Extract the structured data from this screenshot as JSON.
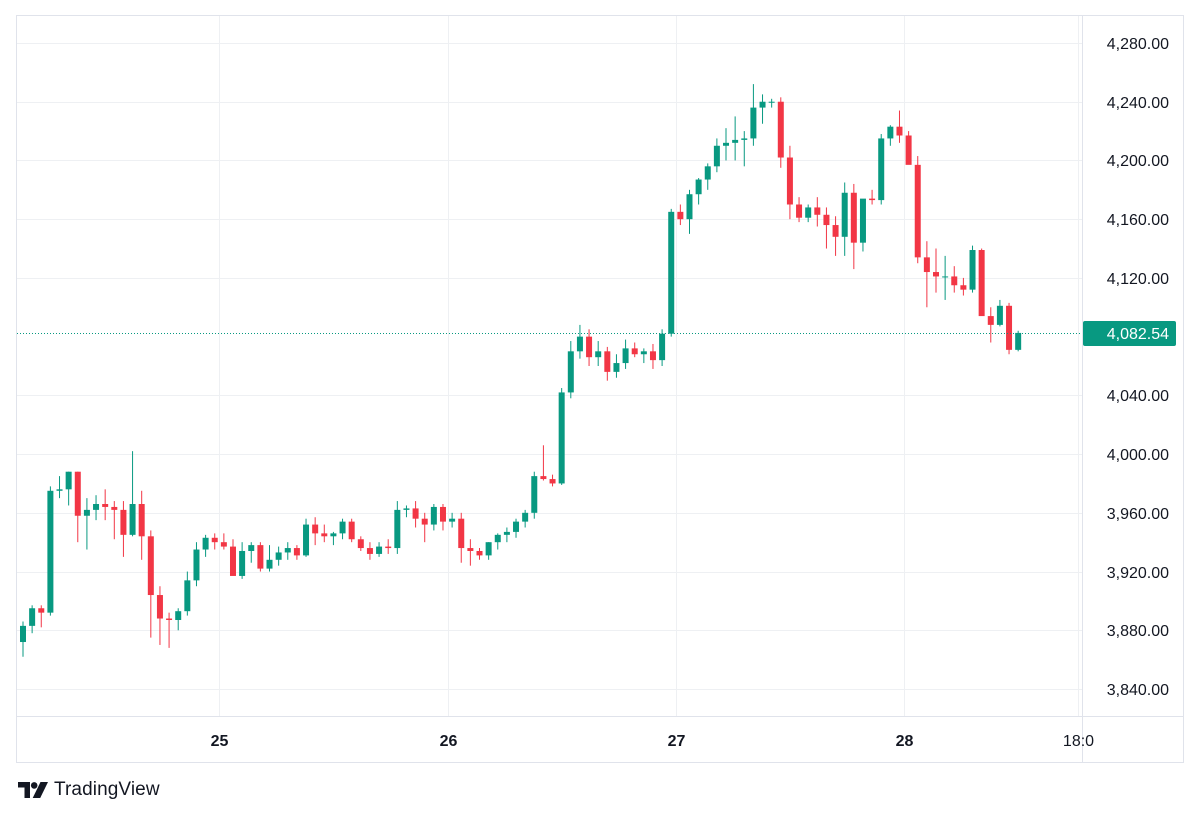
{
  "brand": {
    "name": "TradingView",
    "logo_icon": "tradingview-logo-icon"
  },
  "colors": {
    "up": "#089981",
    "down": "#f23645",
    "grid": "#eef0f3",
    "axis_border": "#e0e3eb",
    "text": "#131722",
    "price_line": "#089981"
  },
  "last_price": {
    "value": 4082.54,
    "label": "4,082.54"
  },
  "chart_data": {
    "type": "candlestick",
    "title": "",
    "xlabel": "",
    "ylabel": "",
    "ylim": [
      3820,
      4300
    ],
    "y_ticks": [
      {
        "value": 4280,
        "label": "4,280.00"
      },
      {
        "value": 4240,
        "label": "4,240.00"
      },
      {
        "value": 4200,
        "label": "4,200.00"
      },
      {
        "value": 4160,
        "label": "4,160.00"
      },
      {
        "value": 4120,
        "label": "4,120.00"
      },
      {
        "value": 4040,
        "label": "4,040.00"
      },
      {
        "value": 4000,
        "label": "4,000.00"
      },
      {
        "value": 3960,
        "label": "3,960.00"
      },
      {
        "value": 3920,
        "label": "3,920.00"
      },
      {
        "value": 3880,
        "label": "3,880.00"
      },
      {
        "value": 3840,
        "label": "3,840.00"
      }
    ],
    "x_ticks": [
      {
        "bar": 21.5,
        "label": "25",
        "bold": true
      },
      {
        "bar": 46.5,
        "label": "26",
        "bold": true
      },
      {
        "bar": 71.5,
        "label": "27",
        "bold": true
      },
      {
        "bar": 96.5,
        "label": "28",
        "bold": true
      },
      {
        "bar": 115.5,
        "label": "18:0",
        "bold": false
      }
    ],
    "grid": true,
    "candles": [
      [
        3872,
        3886,
        3862,
        3883
      ],
      [
        3883,
        3897,
        3878,
        3895
      ],
      [
        3895,
        3897,
        3882,
        3892
      ],
      [
        3892,
        3978,
        3890,
        3975
      ],
      [
        3975,
        3985,
        3970,
        3976
      ],
      [
        3976,
        3988,
        3965,
        3988
      ],
      [
        3988,
        3988,
        3940,
        3958
      ],
      [
        3958,
        3970,
        3935,
        3962
      ],
      [
        3962,
        3972,
        3955,
        3966
      ],
      [
        3966,
        3976,
        3955,
        3964
      ],
      [
        3964,
        3968,
        3942,
        3962
      ],
      [
        3962,
        3968,
        3930,
        3945
      ],
      [
        3945,
        4002,
        3944,
        3966
      ],
      [
        3966,
        3975,
        3928,
        3944
      ],
      [
        3944,
        3948,
        3875,
        3904
      ],
      [
        3904,
        3910,
        3870,
        3888
      ],
      [
        3888,
        3892,
        3868,
        3887
      ],
      [
        3887,
        3895,
        3880,
        3893
      ],
      [
        3893,
        3920,
        3890,
        3914
      ],
      [
        3914,
        3940,
        3910,
        3935
      ],
      [
        3935,
        3945,
        3930,
        3943
      ],
      [
        3943,
        3946,
        3935,
        3940
      ],
      [
        3940,
        3946,
        3935,
        3937
      ],
      [
        3937,
        3942,
        3918,
        3917
      ],
      [
        3917,
        3940,
        3915,
        3934
      ],
      [
        3934,
        3940,
        3926,
        3938
      ],
      [
        3938,
        3940,
        3920,
        3922
      ],
      [
        3922,
        3938,
        3920,
        3928
      ],
      [
        3928,
        3937,
        3924,
        3933
      ],
      [
        3933,
        3940,
        3928,
        3936
      ],
      [
        3936,
        3938,
        3928,
        3931
      ],
      [
        3931,
        3956,
        3930,
        3952
      ],
      [
        3952,
        3957,
        3938,
        3946
      ],
      [
        3946,
        3952,
        3940,
        3944
      ],
      [
        3944,
        3947,
        3938,
        3946
      ],
      [
        3946,
        3956,
        3942,
        3954
      ],
      [
        3954,
        3956,
        3940,
        3942
      ],
      [
        3942,
        3944,
        3934,
        3936
      ],
      [
        3936,
        3940,
        3928,
        3932
      ],
      [
        3932,
        3940,
        3930,
        3937
      ],
      [
        3937,
        3942,
        3932,
        3936
      ],
      [
        3936,
        3968,
        3932,
        3962
      ],
      [
        3962,
        3965,
        3957,
        3963
      ],
      [
        3963,
        3968,
        3950,
        3956
      ],
      [
        3956,
        3960,
        3940,
        3952
      ],
      [
        3952,
        3966,
        3948,
        3964
      ],
      [
        3964,
        3966,
        3948,
        3954
      ],
      [
        3954,
        3960,
        3950,
        3956
      ],
      [
        3956,
        3960,
        3926,
        3936
      ],
      [
        3936,
        3942,
        3924,
        3934
      ],
      [
        3934,
        3936,
        3928,
        3931
      ],
      [
        3931,
        3940,
        3928,
        3940
      ],
      [
        3940,
        3946,
        3935,
        3945
      ],
      [
        3945,
        3950,
        3940,
        3947
      ],
      [
        3947,
        3956,
        3943,
        3954
      ],
      [
        3954,
        3962,
        3950,
        3960
      ],
      [
        3960,
        3988,
        3956,
        3985
      ],
      [
        3985,
        4006,
        3982,
        3983
      ],
      [
        3983,
        3986,
        3978,
        3980
      ],
      [
        3980,
        4045,
        3979,
        4042
      ],
      [
        4042,
        4077,
        4038,
        4070
      ],
      [
        4070,
        4088,
        4065,
        4080
      ],
      [
        4080,
        4085,
        4060,
        4066
      ],
      [
        4066,
        4077,
        4060,
        4070
      ],
      [
        4070,
        4073,
        4050,
        4056
      ],
      [
        4056,
        4068,
        4052,
        4062
      ],
      [
        4062,
        4078,
        4058,
        4072
      ],
      [
        4072,
        4076,
        4066,
        4068
      ],
      [
        4068,
        4072,
        4062,
        4070
      ],
      [
        4070,
        4075,
        4058,
        4064
      ],
      [
        4064,
        4085,
        4060,
        4082
      ],
      [
        4082,
        4167,
        4080,
        4165
      ],
      [
        4165,
        4170,
        4156,
        4160
      ],
      [
        4160,
        4180,
        4150,
        4177
      ],
      [
        4177,
        4188,
        4170,
        4187
      ],
      [
        4187,
        4198,
        4180,
        4196
      ],
      [
        4196,
        4215,
        4192,
        4210
      ],
      [
        4210,
        4222,
        4200,
        4212
      ],
      [
        4212,
        4230,
        4200,
        4214
      ],
      [
        4214,
        4220,
        4196,
        4215
      ],
      [
        4215,
        4252,
        4210,
        4236
      ],
      [
        4236,
        4245,
        4225,
        4240
      ],
      [
        4240,
        4242,
        4236,
        4240
      ],
      [
        4240,
        4243,
        4195,
        4202
      ],
      [
        4202,
        4210,
        4160,
        4170
      ],
      [
        4170,
        4175,
        4158,
        4161
      ],
      [
        4161,
        4170,
        4158,
        4168
      ],
      [
        4168,
        4175,
        4155,
        4163
      ],
      [
        4163,
        4168,
        4140,
        4156
      ],
      [
        4156,
        4162,
        4135,
        4148
      ],
      [
        4148,
        4185,
        4135,
        4178
      ],
      [
        4178,
        4184,
        4126,
        4144
      ],
      [
        4144,
        4170,
        4138,
        4174
      ],
      [
        4174,
        4180,
        4170,
        4173
      ],
      [
        4173,
        4218,
        4170,
        4215
      ],
      [
        4215,
        4224,
        4210,
        4223
      ],
      [
        4223,
        4234,
        4212,
        4217
      ],
      [
        4217,
        4220,
        4200,
        4197
      ],
      [
        4197,
        4203,
        4130,
        4134
      ],
      [
        4134,
        4145,
        4100,
        4124
      ],
      [
        4124,
        4140,
        4110,
        4121
      ],
      [
        4121,
        4135,
        4105,
        4121
      ],
      [
        4121,
        4128,
        4110,
        4115
      ],
      [
        4115,
        4120,
        4108,
        4112
      ],
      [
        4112,
        4142,
        4110,
        4139
      ],
      [
        4139,
        4140,
        4095,
        4094
      ],
      [
        4094,
        4100,
        4076,
        4088
      ],
      [
        4088,
        4105,
        4087,
        4101
      ],
      [
        4101,
        4103,
        4068,
        4071
      ],
      [
        4071,
        4084,
        4070,
        4082.54
      ]
    ]
  }
}
